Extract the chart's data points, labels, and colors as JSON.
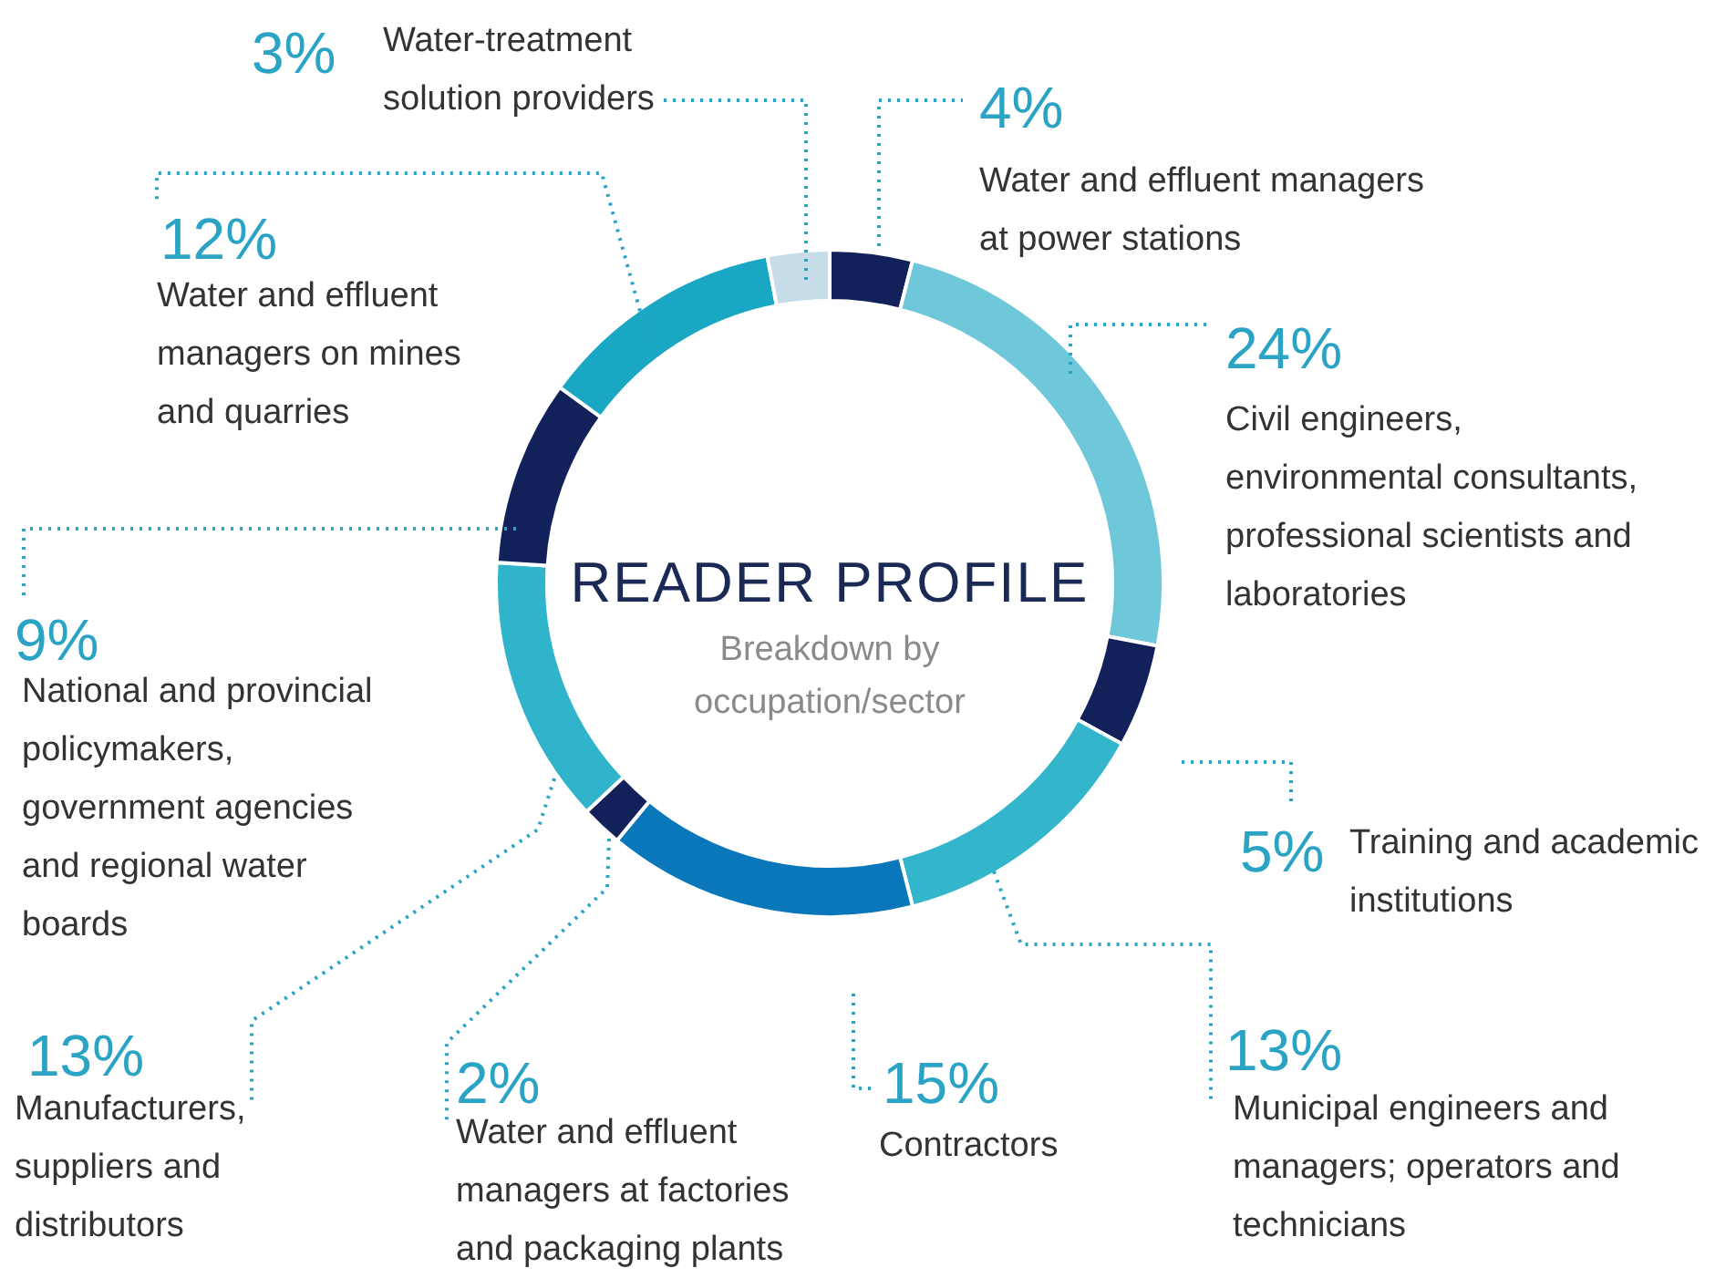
{
  "chart_data": {
    "type": "donut",
    "title": "READER PROFILE",
    "subtitle": "Breakdown by occupation/sector",
    "categories": [
      "Water and effluent managers at power stations",
      "Civil engineers, environmental consultants, professional scientists and laboratories",
      "Training and academic institutions",
      "Municipal engineers and managers; operators and technicians",
      "Contractors",
      "Water and effluent managers at factories and packaging plants",
      "Manufacturers, suppliers and distributors",
      "National and provincial policymakers, government agencies and regional water boards",
      "Water and effluent managers on mines and quarries",
      "Water-treatment solution providers"
    ],
    "values": [
      4,
      24,
      5,
      13,
      15,
      2,
      13,
      9,
      12,
      3
    ],
    "value_labels": [
      "4%",
      "24%",
      "5%",
      "13%",
      "15%",
      "2%",
      "13%",
      "9%",
      "12%",
      "3%"
    ],
    "colors": [
      "#13215a",
      "#6ec8da",
      "#13215a",
      "#33b6cc",
      "#0a77bb",
      "#13215a",
      "#2fb4cb",
      "#13215a",
      "#1aa7c3",
      "#c6dde9"
    ]
  }
}
